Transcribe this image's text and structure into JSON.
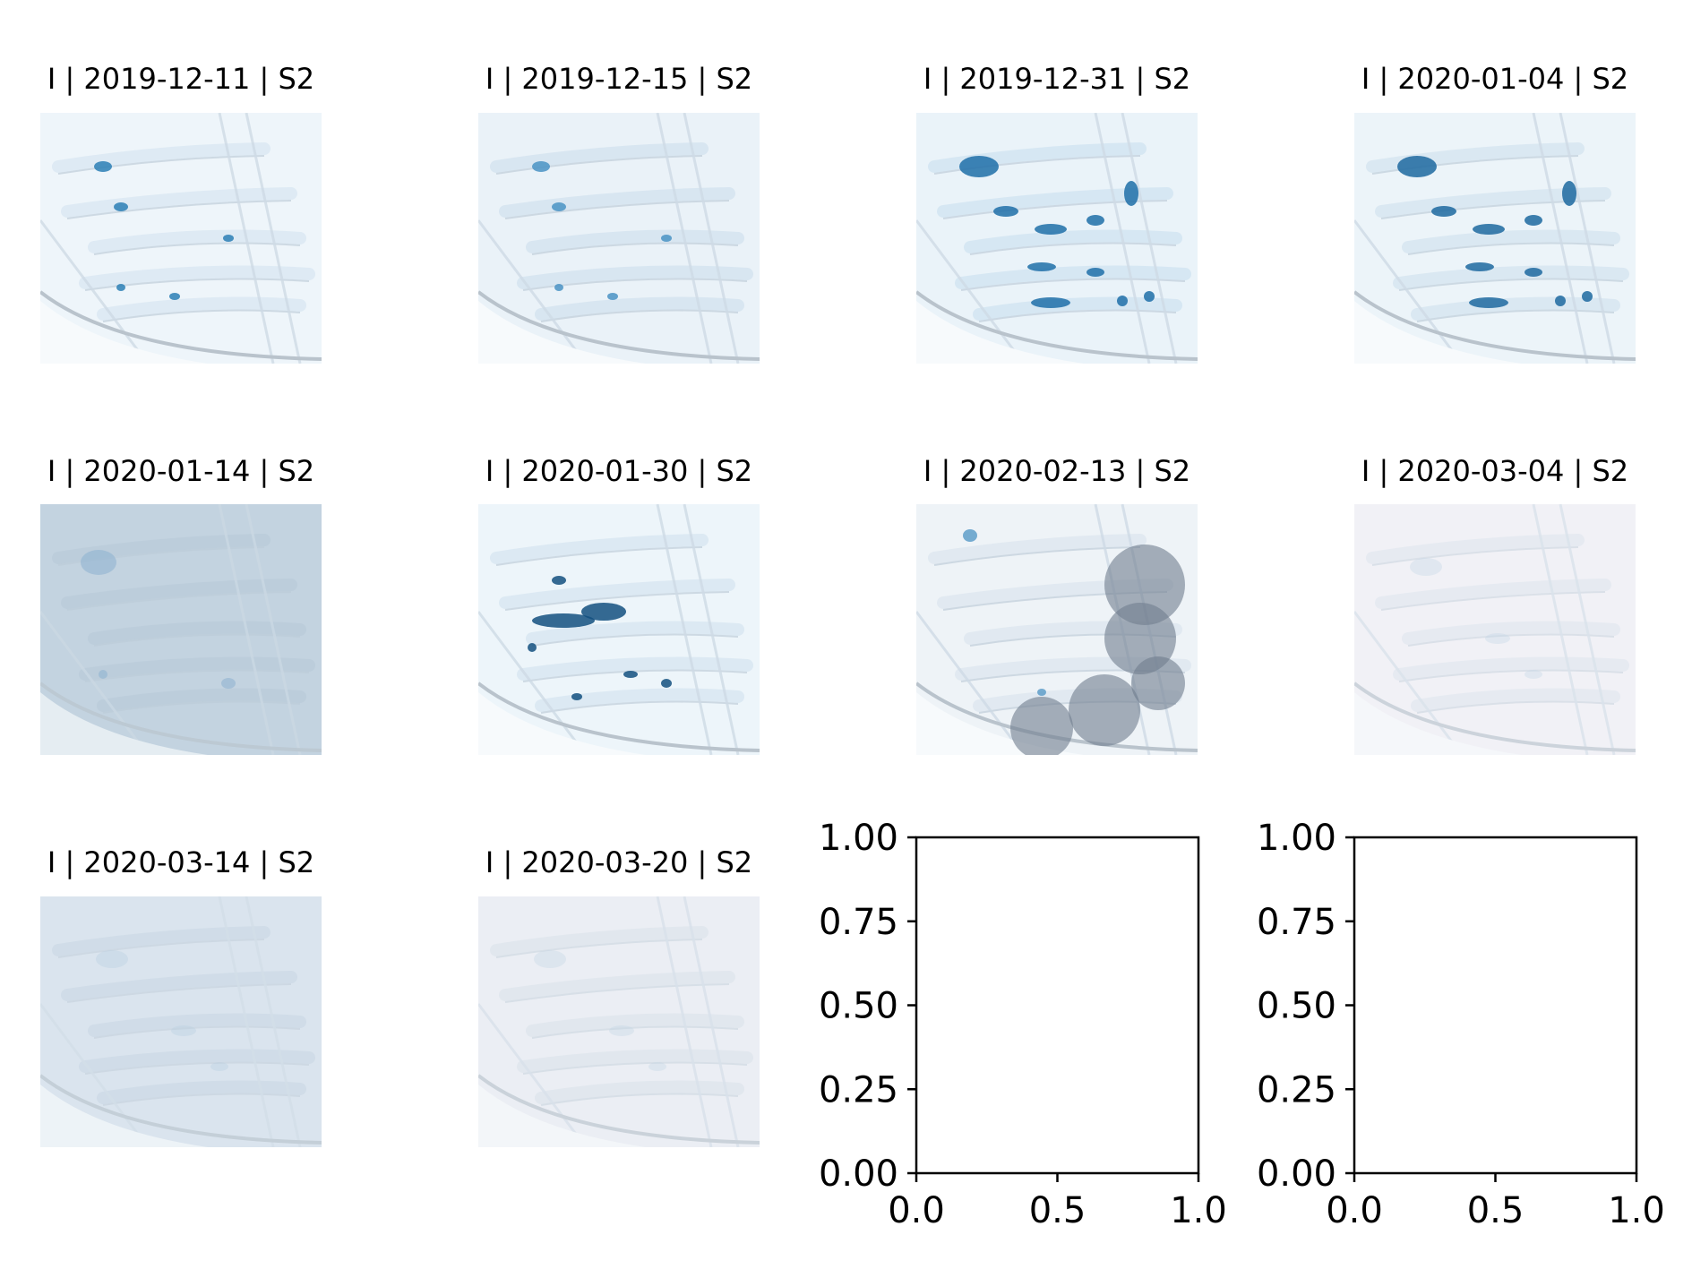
{
  "panels": [
    {
      "title": "I | 2019-12-11 | S2",
      "palette": {
        "bg": "#eef5fa",
        "ice": "#dce9f3",
        "pond": "#2b7fb5"
      },
      "ponds": "few"
    },
    {
      "title": "I | 2019-12-15 | S2",
      "palette": {
        "bg": "#eaf2f8",
        "ice": "#d6e4ef",
        "pond": "#4a93c4"
      },
      "ponds": "few"
    },
    {
      "title": "I | 2019-12-31 | S2",
      "palette": {
        "bg": "#eaf3f9",
        "ice": "#d4e6f2",
        "pond": "#1e6ea8"
      },
      "ponds": "many"
    },
    {
      "title": "I | 2020-01-04 | S2",
      "palette": {
        "bg": "#ecf4f9",
        "ice": "#d8e7f1",
        "pond": "#1d69a0"
      },
      "ponds": "many"
    },
    {
      "title": "I | 2020-01-14 | S2",
      "palette": {
        "bg": "#c4d3e0",
        "ice": "#b7c8d8",
        "pond": "#6f9fc8"
      },
      "ponds": "hazy"
    },
    {
      "title": "I | 2020-01-30 | S2",
      "palette": {
        "bg": "#edf5fa",
        "ice": "#d9e8f2",
        "pond": "#13507f"
      },
      "ponds": "large"
    },
    {
      "title": "I | 2020-02-13 | S2",
      "palette": {
        "bg": "#eef3f7",
        "ice": "#dfe8ef",
        "pond": "#5e9ec9"
      },
      "ponds": "cloud"
    },
    {
      "title": "I | 2020-03-04 | S2",
      "palette": {
        "bg": "#f1f2f6",
        "ice": "#dfe6ee",
        "pond": "#a8c7dc"
      },
      "ponds": "faint"
    },
    {
      "title": "I | 2020-03-14 | S2",
      "palette": {
        "bg": "#dbe4ee",
        "ice": "#c9d6e3",
        "pond": "#a2bfd6"
      },
      "ponds": "faint"
    },
    {
      "title": "I | 2020-03-20 | S2",
      "palette": {
        "bg": "#eceff4",
        "ice": "#dae2eb",
        "pond": "#a9c6da"
      },
      "ponds": "faint"
    }
  ],
  "empty_axes": [
    {
      "xticks": [
        "0.0",
        "0.5",
        "1.0"
      ],
      "yticks": [
        "0.00",
        "0.25",
        "0.50",
        "0.75",
        "1.00"
      ],
      "xlim": [
        0,
        1
      ],
      "ylim": [
        0,
        1
      ]
    },
    {
      "xticks": [
        "0.0",
        "0.5",
        "1.0"
      ],
      "yticks": [
        "0.00",
        "0.25",
        "0.50",
        "0.75",
        "1.00"
      ],
      "xlim": [
        0,
        1
      ],
      "ylim": [
        0,
        1
      ]
    }
  ]
}
